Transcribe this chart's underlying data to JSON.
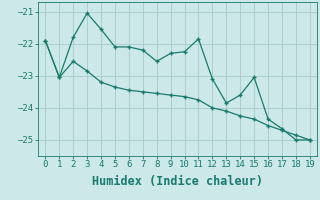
{
  "xlabel": "Humidex (Indice chaleur)",
  "x": [
    0,
    1,
    2,
    3,
    4,
    5,
    6,
    7,
    8,
    9,
    10,
    11,
    12,
    13,
    14,
    15,
    16,
    17,
    18,
    19
  ],
  "line1": [
    -21.9,
    -23.05,
    -21.8,
    -21.05,
    -21.55,
    -22.1,
    -22.1,
    -22.2,
    -22.55,
    -22.3,
    -22.25,
    -21.85,
    -23.1,
    -23.85,
    -23.6,
    -23.05,
    -24.35,
    -24.65,
    -25.0,
    -25.0
  ],
  "line2": [
    -21.9,
    -23.05,
    -22.55,
    -22.85,
    -23.2,
    -23.35,
    -23.45,
    -23.5,
    -23.55,
    -23.6,
    -23.65,
    -23.75,
    -24.0,
    -24.1,
    -24.25,
    -24.35,
    -24.55,
    -24.7,
    -24.85,
    -25.0
  ],
  "line_color": "#1a7a6e",
  "bg_color": "#cce8e8",
  "grid_color": "#aacfcf",
  "ylim": [
    -25.5,
    -20.7
  ],
  "xlim": [
    -0.5,
    19.5
  ],
  "yticks": [
    -25,
    -24,
    -23,
    -22,
    -21
  ],
  "xticks": [
    0,
    1,
    2,
    3,
    4,
    5,
    6,
    7,
    8,
    9,
    10,
    11,
    12,
    13,
    14,
    15,
    16,
    17,
    18,
    19
  ],
  "tick_fontsize": 6.5,
  "xlabel_fontsize": 8.5,
  "marker": "+"
}
